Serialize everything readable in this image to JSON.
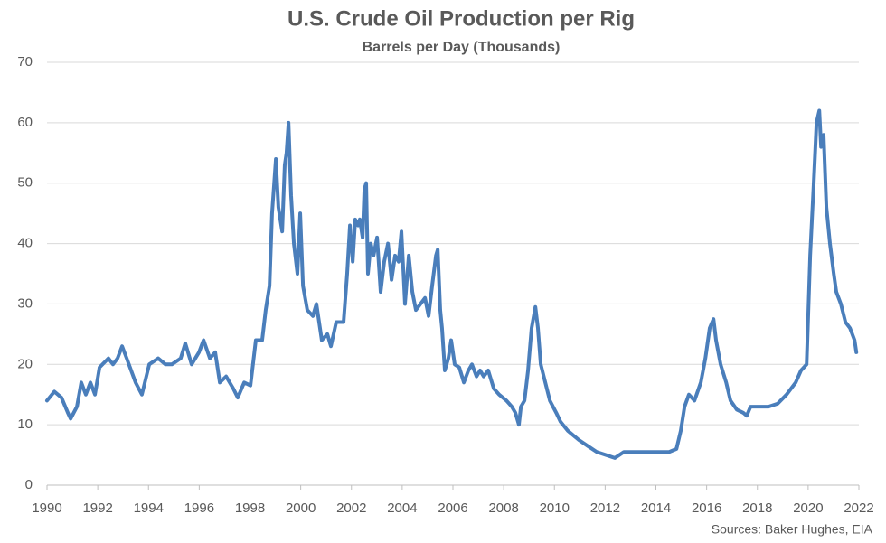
{
  "chart_data": {
    "type": "line",
    "title": "U.S. Crude Oil Production per Rig",
    "subtitle": "Barrels per Day (Thousands)",
    "source": "Sources: Baker Hughes, EIA",
    "color": "#4a7ebb",
    "grid": true,
    "xlim": [
      1990,
      2022
    ],
    "xticks": [
      1990,
      1992,
      1994,
      1996,
      1998,
      2000,
      2002,
      2004,
      2006,
      2008,
      2010,
      2012,
      2014,
      2016,
      2018,
      2020,
      2022
    ],
    "ylim": [
      0,
      70
    ],
    "yticks": [
      0,
      10,
      20,
      30,
      40,
      50,
      60,
      70
    ],
    "x": [
      1990.0,
      1990.29,
      1990.57,
      1990.82,
      1990.93,
      1991.18,
      1991.35,
      1991.53,
      1991.71,
      1991.89,
      1992.07,
      1992.42,
      1992.6,
      1992.78,
      1992.96,
      1993.14,
      1993.49,
      1993.74,
      1994.03,
      1994.38,
      1994.67,
      1994.92,
      1995.27,
      1995.45,
      1995.7,
      1995.99,
      1996.17,
      1996.42,
      1996.63,
      1996.81,
      1997.06,
      1997.34,
      1997.52,
      1997.77,
      1998.02,
      1998.23,
      1998.48,
      1998.62,
      1998.77,
      1998.87,
      1999.02,
      1999.12,
      1999.27,
      1999.37,
      1999.44,
      1999.52,
      1999.62,
      1999.73,
      1999.87,
      1999.98,
      2000.09,
      2000.26,
      2000.48,
      2000.62,
      2000.83,
      2001.05,
      2001.19,
      2001.4,
      2001.69,
      2001.83,
      2001.94,
      2002.05,
      2002.15,
      2002.26,
      2002.33,
      2002.44,
      2002.51,
      2002.58,
      2002.65,
      2002.76,
      2002.87,
      2003.01,
      2003.15,
      2003.29,
      2003.44,
      2003.58,
      2003.72,
      2003.86,
      2003.97,
      2004.11,
      2004.26,
      2004.4,
      2004.54,
      2004.72,
      2004.9,
      2005.04,
      2005.18,
      2005.33,
      2005.4,
      2005.5,
      2005.57,
      2005.68,
      2005.82,
      2005.93,
      2006.07,
      2006.25,
      2006.43,
      2006.61,
      2006.75,
      2006.93,
      2007.07,
      2007.21,
      2007.39,
      2007.61,
      2007.82,
      2008.11,
      2008.32,
      2008.46,
      2008.6,
      2008.68,
      2008.82,
      2008.96,
      2009.1,
      2009.25,
      2009.35,
      2009.46,
      2009.64,
      2009.82,
      2010.07,
      2010.24,
      2010.53,
      2010.96,
      2011.31,
      2011.67,
      2012.03,
      2012.38,
      2012.74,
      2013.09,
      2013.45,
      2013.81,
      2014.16,
      2014.52,
      2014.81,
      2014.98,
      2015.13,
      2015.3,
      2015.52,
      2015.77,
      2015.95,
      2016.12,
      2016.27,
      2016.37,
      2016.55,
      2016.77,
      2016.94,
      2017.19,
      2017.44,
      2017.58,
      2017.73,
      2018.08,
      2018.44,
      2018.8,
      2019.15,
      2019.51,
      2019.72,
      2019.94,
      2020.08,
      2020.22,
      2020.33,
      2020.44,
      2020.51,
      2020.61,
      2020.72,
      2020.86,
      2021.01,
      2021.11,
      2021.29,
      2021.47,
      2021.65,
      2021.83,
      2021.9
    ],
    "values": [
      14,
      15.5,
      14.5,
      12,
      11,
      13,
      17,
      15,
      17,
      15,
      19.5,
      21,
      20,
      21,
      23,
      21,
      17,
      15,
      20,
      21,
      20,
      20,
      21,
      23.5,
      20,
      22,
      24,
      21,
      22,
      17,
      18,
      16,
      14.5,
      17,
      16.5,
      24,
      24,
      29,
      33,
      45,
      54,
      46,
      42,
      53,
      55,
      60,
      48,
      40,
      35,
      45,
      33,
      29,
      28,
      30,
      24,
      25,
      23,
      27,
      27,
      35,
      43,
      37,
      44,
      43,
      44,
      41,
      49,
      50,
      35,
      40,
      38,
      41,
      32,
      37,
      40,
      34,
      38,
      37,
      42,
      30,
      38,
      32,
      29,
      30,
      31,
      28,
      33,
      38,
      39,
      29,
      26,
      19,
      21,
      24,
      20,
      19.5,
      17,
      19,
      20,
      18,
      19,
      18,
      19,
      16,
      15,
      14,
      13,
      12,
      10,
      13,
      14,
      19,
      26,
      29.5,
      26,
      20,
      17,
      14,
      12,
      10.5,
      9,
      7.5,
      6.5,
      5.5,
      5,
      4.5,
      5.5,
      5.5,
      5.5,
      5.5,
      5.5,
      5.5,
      6,
      9,
      13,
      15,
      14,
      17,
      21,
      26,
      27.5,
      24,
      20,
      17,
      14,
      12.5,
      12,
      11.5,
      13,
      13,
      13,
      13.5,
      15,
      17,
      19,
      20,
      38,
      50,
      60,
      62,
      56,
      58,
      46,
      40,
      35,
      32,
      30,
      27,
      26,
      24,
      22
    ]
  }
}
